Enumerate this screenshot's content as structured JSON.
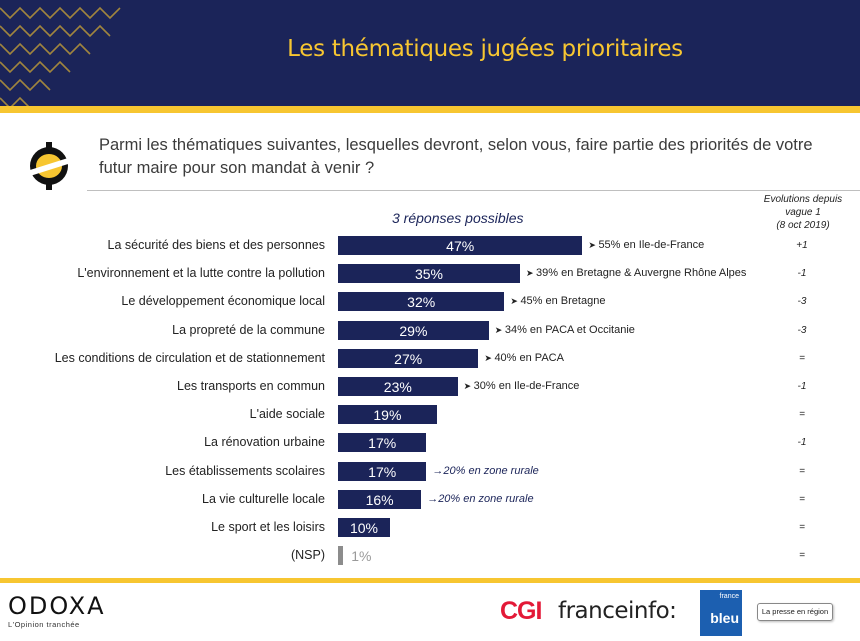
{
  "header": {
    "title": "Les thématiques jugées prioritaires"
  },
  "question": "Parmi les thématiques suivantes, lesquelles devront, selon vous, faire partie des priorités de votre futur maire pour son mandat à venir ?",
  "possible_label": "3 réponses possibles",
  "evolution_header": {
    "line1": "Evolutions depuis",
    "line2": "vague 1",
    "line3": "(8 oct 2019)"
  },
  "chart_data": {
    "type": "bar",
    "orientation": "horizontal",
    "title": "",
    "xlabel": "",
    "ylabel": "",
    "xlim": [
      0,
      100
    ],
    "unit": "%",
    "categories": [
      "La sécurité des biens et des personnes",
      "L'environnement et la lutte contre la pollution",
      "Le développement économique local",
      "La propreté de la commune",
      "Les conditions de circulation et de stationnement",
      "Les transports en commun",
      "L'aide sociale",
      "La rénovation urbaine",
      "Les établissements scolaires",
      "La vie culturelle locale",
      "Le sport et les loisirs",
      "(NSP)"
    ],
    "values": [
      47,
      35,
      32,
      29,
      27,
      23,
      19,
      17,
      17,
      16,
      10,
      1
    ],
    "value_labels": [
      "47%",
      "35%",
      "32%",
      "29%",
      "27%",
      "23%",
      "19%",
      "17%",
      "17%",
      "16%",
      "10%",
      "1%"
    ],
    "regional_notes": [
      "55% en Ile-de-France",
      "39% en Bretagne & Auvergne Rhône Alpes",
      "45% en Bretagne",
      "34% en PACA et Occitanie",
      "40% en PACA",
      "30% en Ile-de-France",
      "",
      "",
      "20% en zone rurale",
      "20% en zone rurale",
      "",
      ""
    ],
    "evolutions": [
      "+1",
      "-1",
      "-3",
      "-3",
      "=",
      "-1",
      "=",
      "-1",
      "=",
      "=",
      "=",
      "="
    ],
    "colors": {
      "bar": "#1b2459",
      "nsp_bar": "#8c8c8c",
      "accent": "#f7c631"
    }
  },
  "footer": {
    "odoxa": "ODOXA",
    "odoxa_tagline": "L'Opinion tranchée",
    "cgi": "CGI",
    "franceinfo": "franceinfo:",
    "france_bleu_top": "france",
    "france_bleu_main": "bleu",
    "presse": "La presse en région"
  }
}
